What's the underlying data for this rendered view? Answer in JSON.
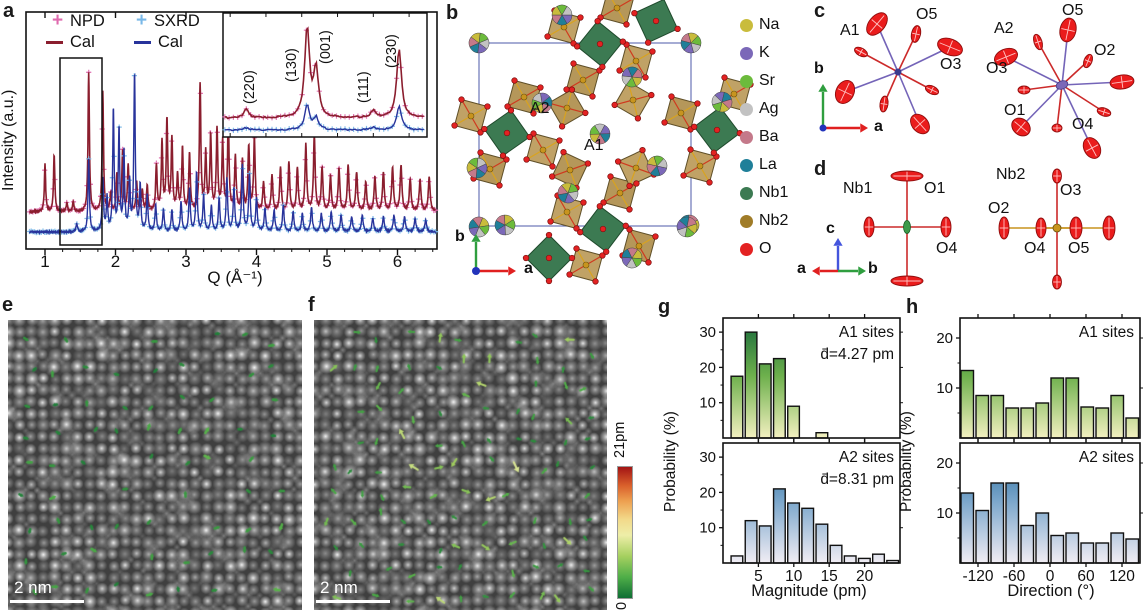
{
  "panel_a": {
    "label": "a",
    "ylabel": "Intensity (a.u.)",
    "xlabel": "Q (Å⁻¹)",
    "legend": [
      {
        "label": "NPD",
        "marker": "plus",
        "color": "#df6aae"
      },
      {
        "label": "Cal",
        "marker": "line",
        "color": "#8b1e2e"
      },
      {
        "label": "SXRD",
        "marker": "plus",
        "color": "#79b8e8"
      },
      {
        "label": "Cal",
        "marker": "line",
        "color": "#28339b"
      }
    ],
    "inset_labels": [
      "(220)",
      "(130)",
      "(001)",
      "(111)",
      "(230)"
    ]
  },
  "panel_b": {
    "label": "b",
    "site_a1": "A1",
    "site_a2": "A2",
    "axis_a": "a",
    "axis_b": "b",
    "legend": [
      {
        "label": "Na",
        "color": "#c9bc3c"
      },
      {
        "label": "K",
        "color": "#7b68b8"
      },
      {
        "label": "Sr",
        "color": "#6cbb3c"
      },
      {
        "label": "Ag",
        "color": "#c2c2c2"
      },
      {
        "label": "Ba",
        "color": "#c4798a"
      },
      {
        "label": "La",
        "color": "#1f7f99"
      },
      {
        "label": "Nb1",
        "color": "#3c7a52"
      },
      {
        "label": "Nb2",
        "color": "#a07c28"
      },
      {
        "label": "O",
        "color": "#e32222"
      }
    ]
  },
  "panel_c": {
    "label": "c",
    "a1": "A1",
    "a2": "A2",
    "o5_left": "O5",
    "o3_left": "O3",
    "o5_right": "O5",
    "o2_right": "O2",
    "o3_right": "O3",
    "o1_right": "O1",
    "o4_right": "O4",
    "axis_a": "a",
    "axis_b": "b"
  },
  "panel_d": {
    "label": "d",
    "nb1": "Nb1",
    "nb2": "Nb2",
    "o1": "O1",
    "o4_left": "O4",
    "o3": "O3",
    "o2": "O2",
    "o4_right": "O4",
    "o5": "O5",
    "axis_a": "a",
    "axis_b": "b",
    "axis_c": "c"
  },
  "panel_e": {
    "label": "e",
    "scalebar": "2 nm"
  },
  "panel_f": {
    "label": "f",
    "scalebar": "2 nm"
  },
  "colorbar": {
    "top_label": "21pm",
    "bottom_label": "0",
    "stops_bottom_to_top": [
      "#0e6e34",
      "#4fae48",
      "#a6d060",
      "#eeeea8",
      "#f2d98a",
      "#eda050",
      "#d95f2b",
      "#a31414"
    ]
  },
  "panel_g": {
    "label": "g",
    "ylabel": "Probability (%)",
    "xlabel": "Magnitude (pm)",
    "top_title": "A1 sites",
    "top_mean": "d̄=4.27 pm",
    "bottom_title": "A2 sites",
    "bottom_mean": "d̄=8.31 pm"
  },
  "panel_h": {
    "label": "h",
    "ylabel": "Probability (%)",
    "xlabel": "Direction (°)",
    "top_title": "A1 sites",
    "bottom_title": "A2 sites"
  },
  "chart_data": [
    {
      "id": "panel_a_diffraction",
      "type": "line",
      "xlabel": "Q (Å⁻¹)",
      "ylabel": "Intensity (a.u.)",
      "xlim": [
        0.75,
        6.55
      ],
      "xticks": [
        1,
        2,
        3,
        4,
        5,
        6
      ],
      "series": [
        {
          "name": "NPD",
          "marker": "+",
          "marker_color": "#df6aae",
          "cal_line_color": "#8b1e2e",
          "peaks_q_height": [
            [
              1.0,
              0.33
            ],
            [
              1.13,
              0.4
            ],
            [
              1.31,
              0.06
            ],
            [
              1.4,
              0.07
            ],
            [
              1.62,
              0.97
            ],
            [
              1.82,
              0.83
            ],
            [
              1.93,
              0.12
            ],
            [
              2.02,
              0.26
            ],
            [
              2.1,
              0.42
            ],
            [
              2.18,
              0.32
            ],
            [
              2.3,
              0.2
            ],
            [
              2.38,
              0.15
            ],
            [
              2.45,
              0.18
            ],
            [
              2.58,
              0.32
            ],
            [
              2.66,
              0.48
            ],
            [
              2.73,
              0.63
            ],
            [
              2.8,
              0.5
            ],
            [
              2.88,
              0.25
            ],
            [
              2.95,
              0.44
            ],
            [
              3.05,
              0.4
            ],
            [
              3.2,
              0.88
            ],
            [
              3.28,
              0.4
            ],
            [
              3.35,
              0.52
            ],
            [
              3.44,
              0.56
            ],
            [
              3.52,
              0.48
            ],
            [
              3.6,
              0.62
            ],
            [
              3.7,
              0.38
            ],
            [
              3.8,
              0.35
            ],
            [
              3.89,
              0.45
            ],
            [
              3.97,
              0.5
            ],
            [
              4.1,
              0.2
            ],
            [
              4.22,
              0.25
            ],
            [
              4.34,
              0.3
            ],
            [
              4.46,
              0.34
            ],
            [
              4.58,
              0.3
            ],
            [
              4.7,
              0.46
            ],
            [
              4.82,
              0.52
            ],
            [
              4.93,
              0.3
            ],
            [
              5.05,
              0.24
            ],
            [
              5.17,
              0.3
            ],
            [
              5.3,
              0.32
            ],
            [
              5.42,
              0.27
            ],
            [
              5.55,
              0.2
            ],
            [
              5.68,
              0.24
            ],
            [
              5.8,
              0.27
            ],
            [
              5.93,
              0.3
            ],
            [
              6.05,
              0.32
            ],
            [
              6.18,
              0.22
            ],
            [
              6.32,
              0.22
            ],
            [
              6.45,
              0.24
            ]
          ]
        },
        {
          "name": "SXRD",
          "marker": "+",
          "marker_color": "#79b8e8",
          "cal_line_color": "#28339b",
          "peaks_q_height": [
            [
              1.45,
              0.05
            ],
            [
              1.62,
              0.44
            ],
            [
              1.82,
              0.32
            ],
            [
              1.88,
              0.2
            ],
            [
              1.97,
              0.74
            ],
            [
              2.05,
              0.62
            ],
            [
              2.12,
              0.47
            ],
            [
              2.2,
              0.3
            ],
            [
              2.27,
              0.95
            ],
            [
              2.35,
              0.28
            ],
            [
              2.45,
              0.22
            ],
            [
              2.57,
              0.16
            ],
            [
              2.68,
              0.14
            ],
            [
              2.8,
              0.13
            ],
            [
              2.93,
              0.18
            ],
            [
              3.05,
              0.26
            ],
            [
              3.15,
              0.36
            ],
            [
              3.25,
              0.22
            ],
            [
              3.36,
              0.16
            ],
            [
              3.47,
              0.2
            ],
            [
              3.58,
              0.32
            ],
            [
              3.68,
              0.26
            ],
            [
              3.8,
              0.4
            ],
            [
              3.9,
              0.34
            ],
            [
              4.0,
              0.2
            ],
            [
              4.12,
              0.14
            ],
            [
              4.25,
              0.13
            ],
            [
              4.38,
              0.16
            ],
            [
              4.52,
              0.12
            ],
            [
              4.65,
              0.11
            ],
            [
              4.78,
              0.15
            ],
            [
              4.92,
              0.11
            ],
            [
              5.06,
              0.12
            ],
            [
              5.2,
              0.1
            ],
            [
              5.35,
              0.09
            ],
            [
              5.5,
              0.1
            ],
            [
              5.65,
              0.08
            ],
            [
              5.8,
              0.09
            ],
            [
              5.95,
              0.1
            ],
            [
              6.1,
              0.09
            ],
            [
              6.25,
              0.08
            ],
            [
              6.4,
              0.07
            ]
          ]
        }
      ],
      "inset": {
        "xlim": [
          1.38,
          1.95
        ],
        "peak_labels": [
          {
            "label": "(220)",
            "q": 1.445
          },
          {
            "label": "(130)",
            "q": 1.615
          },
          {
            "label": "(001)",
            "q": 1.64
          },
          {
            "label": "(111)",
            "q": 1.8
          },
          {
            "label": "(230)",
            "q": 1.872
          }
        ],
        "series": [
          {
            "name": "NPD",
            "peaks_q_height": [
              [
                1.445,
                0.09
              ],
              [
                1.615,
                0.92
              ],
              [
                1.64,
                0.5
              ],
              [
                1.8,
                0.08
              ],
              [
                1.872,
                0.72
              ]
            ]
          },
          {
            "name": "SXRD",
            "peaks_q_height": [
              [
                1.445,
                0.05
              ],
              [
                1.615,
                0.55
              ],
              [
                1.64,
                0.28
              ],
              [
                1.8,
                0.06
              ],
              [
                1.872,
                0.55
              ]
            ]
          }
        ]
      }
    },
    {
      "id": "g_top",
      "type": "bar",
      "site": "A1 sites",
      "mean": "d̄=4.27 pm",
      "bin_start": 1,
      "bin_width": 2,
      "values": [
        17.5,
        30,
        21,
        22.5,
        9,
        0,
        1.5,
        0,
        0,
        0,
        0,
        0
      ],
      "xlim": [
        0,
        25
      ],
      "xticks": [
        5,
        10,
        15,
        20
      ],
      "ylim": [
        0,
        34
      ],
      "yticks": [
        10,
        20,
        30
      ],
      "bar_gradient": [
        "#14663a",
        "#6db04c",
        "#f3f0c0"
      ]
    },
    {
      "id": "g_bottom",
      "type": "bar",
      "site": "A2 sites",
      "mean": "d̄=8.31 pm",
      "bin_start": 1,
      "bin_width": 2,
      "values": [
        2,
        12,
        10.5,
        21,
        17,
        15.5,
        11,
        5,
        2,
        1.3,
        2.5,
        0.7
      ],
      "xlim": [
        0,
        25
      ],
      "xticks": [
        5,
        10,
        15,
        20
      ],
      "ylim": [
        0,
        34
      ],
      "yticks": [
        10,
        20,
        30
      ],
      "xlabel": "Magnitude (pm)",
      "bar_gradient": [
        "#145e92",
        "#7aa6cb",
        "#f1edf4"
      ]
    },
    {
      "id": "h_top",
      "type": "bar",
      "site": "A1 sites",
      "bin_start": -150,
      "bin_width": 25,
      "values": [
        13.5,
        8.5,
        8.5,
        6,
        6,
        7,
        12,
        12,
        6.2,
        6,
        8.5,
        4
      ],
      "xlim": [
        -150,
        150
      ],
      "xticks": [
        -120,
        -60,
        0,
        60,
        120
      ],
      "ylim": [
        0,
        24
      ],
      "yticks": [
        10,
        20
      ],
      "bar_gradient": [
        "#14663a",
        "#6db04c",
        "#f3f0c0"
      ]
    },
    {
      "id": "h_bottom",
      "type": "bar",
      "site": "A2 sites",
      "bin_start": -150,
      "bin_width": 25,
      "values": [
        14,
        10.5,
        16,
        16,
        7.5,
        10,
        5.5,
        6,
        4,
        4,
        6,
        4.8
      ],
      "xlim": [
        -150,
        150
      ],
      "xticks": [
        -120,
        -60,
        0,
        60,
        120
      ],
      "ylim": [
        0,
        24
      ],
      "yticks": [
        10,
        20
      ],
      "xlabel": "Direction (°)",
      "bar_gradient": [
        "#145e92",
        "#7aa6cb",
        "#f1edf4"
      ]
    }
  ],
  "stem": {
    "e": {
      "seed": 7,
      "arrow_mean_pm": 4.27
    },
    "f": {
      "seed": 13,
      "arrow_mean_pm": 8.31
    },
    "scale_max_pm": 21
  }
}
